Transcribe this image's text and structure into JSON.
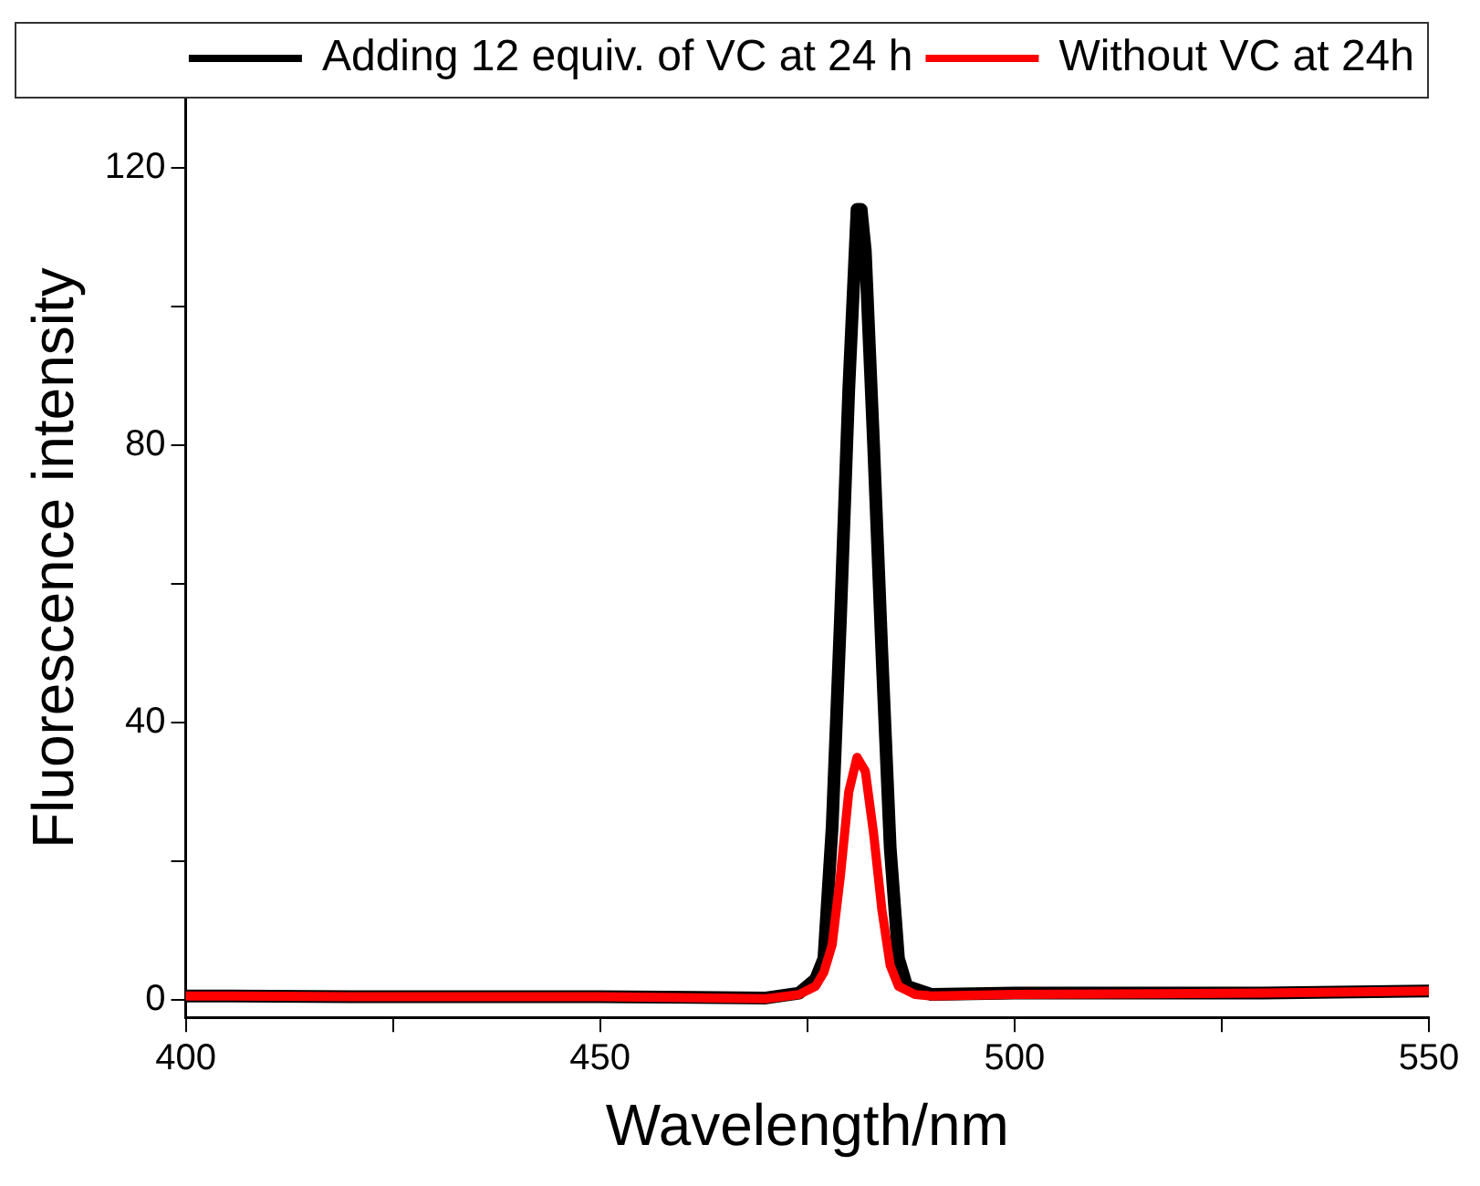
{
  "chart_data": {
    "type": "line",
    "xlabel": "Wavelength/nm",
    "ylabel": "Fluorescence intensity",
    "xlim": [
      400,
      550
    ],
    "xticks": [
      400,
      {
        "value": 425,
        "label": null
      },
      450,
      {
        "value": 475,
        "label": null
      },
      500,
      {
        "value": 525,
        "label": null
      },
      550
    ],
    "ylim": [
      -2.5,
      130
    ],
    "yticks": [
      0,
      {
        "value": 20,
        "label": null
      },
      40,
      {
        "value": 60,
        "label": null
      },
      80,
      {
        "value": 100,
        "label": null
      },
      120
    ],
    "grid": false,
    "legend": "top right",
    "marker": "none",
    "line_style": "solid",
    "series": [
      {
        "name": "Adding 12 equiv. of VC at 24 h",
        "color": "#000000",
        "x": [
          400,
          420,
          450,
          470,
          474,
          476,
          477,
          478,
          479,
          480,
          481,
          481.5,
          482,
          483,
          484,
          485,
          486,
          487,
          490,
          500,
          530,
          550
        ],
        "values": [
          0.6,
          0.5,
          0.5,
          0.3,
          1,
          3,
          6,
          25,
          55,
          88,
          114,
          114,
          108,
          80,
          50,
          22,
          6,
          2,
          0.8,
          1,
          1,
          1.3
        ]
      },
      {
        "name": "Without VC at 24h",
        "color": "#ff0000",
        "x": [
          400,
          420,
          450,
          470,
          474,
          476,
          477,
          478,
          479,
          480,
          481,
          482,
          483,
          484,
          485,
          486,
          488,
          490,
          500,
          530,
          550
        ],
        "values": [
          0.6,
          0.5,
          0.5,
          0.2,
          0.8,
          2,
          4,
          8,
          18,
          30,
          35,
          33,
          24,
          13,
          5,
          2,
          0.8,
          0.6,
          0.8,
          1,
          1.3
        ]
      }
    ]
  }
}
